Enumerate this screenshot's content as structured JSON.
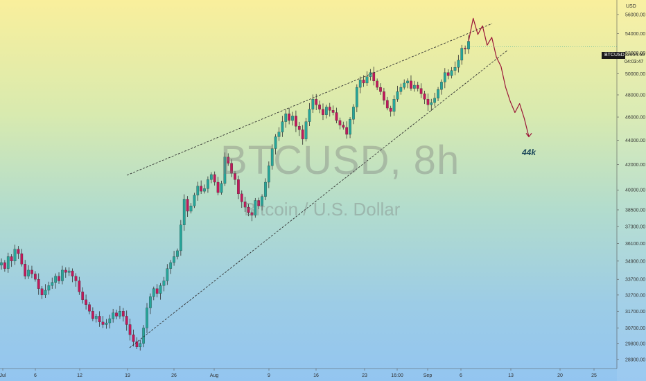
{
  "header": {
    "symbol": "BTCUSD",
    "last_price": "52654.50",
    "countdown": "04:03:47",
    "currency": "USD"
  },
  "watermark": {
    "symbol_interval": "BTCUSD, 8h",
    "description": "Bitcoin / U.S. Dollar"
  },
  "annotation": {
    "target_label": "44k"
  },
  "colors": {
    "up": "#26a69a",
    "down": "#c2185b",
    "wick": "#2e2e2e",
    "trendline": "#333333",
    "projection": "#9a1538"
  },
  "chart_data": {
    "type": "candlestick",
    "title": "",
    "y_axis": {
      "position": "right",
      "scale": "log",
      "tick_labels": [
        "56000.00",
        "54000.00",
        "52000.00",
        "50000.00",
        "48000.00",
        "46000.00",
        "44000.00",
        "42000.00",
        "40000.00",
        "38500.00",
        "37300.00",
        "36100.00",
        "34900.00",
        "33700.00",
        "32700.00",
        "31700.00",
        "30700.00",
        "29800.00",
        "28900.00"
      ],
      "range": [
        28400,
        57200
      ]
    },
    "x_axis": {
      "tick_labels": [
        "Jul",
        "6",
        "12",
        "19",
        "26",
        "Aug",
        "9",
        "16",
        "23",
        "16:00",
        "Sep",
        "6",
        "13",
        "20",
        "25"
      ]
    },
    "candles": [
      34800,
      34400,
      35200,
      34900,
      35700,
      35400,
      34700,
      33900,
      34300,
      34050,
      33700,
      33100,
      32700,
      33000,
      33300,
      33500,
      33900,
      33600,
      34300,
      34150,
      34250,
      33900,
      33600,
      32900,
      32400,
      32100,
      31700,
      31250,
      31400,
      31050,
      30900,
      31000,
      31250,
      31600,
      31400,
      31700,
      31400,
      30900,
      30300,
      29900,
      29600,
      29800,
      30700,
      31900,
      32600,
      33100,
      32800,
      33300,
      33600,
      34400,
      34800,
      35200,
      35600,
      37400,
      39300,
      38400,
      38800,
      39600,
      40300,
      39900,
      40100,
      40800,
      41200,
      40600,
      39800,
      40500,
      42600,
      42100,
      41300,
      40800,
      39700,
      39100,
      38700,
      38300,
      38100,
      39200,
      38800,
      39500,
      40600,
      41900,
      43300,
      44300,
      44700,
      45600,
      46300,
      45700,
      46100,
      45200,
      44900,
      44100,
      45600,
      46700,
      47600,
      47100,
      46700,
      46200,
      46900,
      46600,
      46400,
      45700,
      45300,
      45100,
      44500,
      45800,
      46900,
      48700,
      49400,
      49100,
      49700,
      50100,
      49300,
      48700,
      48300,
      47500,
      46800,
      46500,
      47600,
      48300,
      48700,
      49100,
      49300,
      48600,
      48900,
      48600,
      48100,
      47600,
      47100,
      47300,
      47700,
      48500,
      49200,
      50100,
      49800,
      50300,
      50600,
      51300,
      52500,
      52400,
      53200
    ]
  },
  "projection": [
    53200,
    55600,
    53900,
    54800,
    52800,
    53600,
    51600,
    50700,
    48700,
    47400,
    46400,
    47200,
    45900,
    44300
  ]
}
